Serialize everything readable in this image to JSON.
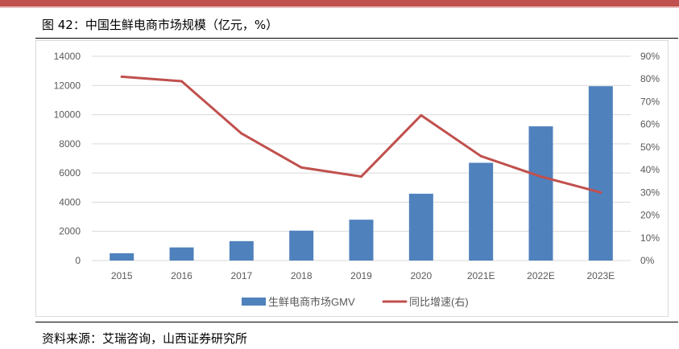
{
  "figure": {
    "title": "图 42：中国生鲜电商市场规模（亿元，%）",
    "source": "资料来源：艾瑞咨询，山西证券研究所"
  },
  "colors": {
    "bar": "#4f81bd",
    "line": "#c0504d",
    "grid": "#d9d9d9",
    "axis_text": "#595959"
  },
  "chart_data": {
    "type": "bar",
    "categories": [
      "2015",
      "2016",
      "2017",
      "2018",
      "2019",
      "2020",
      "2021E",
      "2022E",
      "2023E"
    ],
    "series": [
      {
        "name": "生鲜电商市场GMV",
        "type": "bar",
        "axis": "left",
        "values": [
          500,
          900,
          1330,
          2050,
          2800,
          4580,
          6700,
          9200,
          11950
        ]
      },
      {
        "name": "同比增速(右)",
        "type": "line",
        "axis": "right",
        "values": [
          81,
          79,
          56,
          41,
          37,
          64,
          46,
          37,
          30
        ]
      }
    ],
    "y_left": {
      "range": [
        0,
        14000
      ],
      "ticks": [
        "0",
        "2000",
        "4000",
        "6000",
        "8000",
        "10000",
        "12000",
        "14000"
      ]
    },
    "y_right": {
      "range": [
        0,
        90
      ],
      "ticks": [
        "0%",
        "10%",
        "20%",
        "30%",
        "40%",
        "50%",
        "60%",
        "70%",
        "80%",
        "90%"
      ]
    },
    "grid": true,
    "legend_position": "bottom"
  }
}
